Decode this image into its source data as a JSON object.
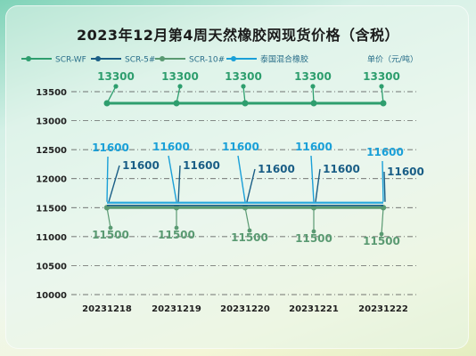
{
  "title": "2023年12月第4周天然橡胶网现货价格（含税）",
  "legend": {
    "items": [
      {
        "name": "SCR-WF",
        "color": "#2e9e6e"
      },
      {
        "name": "SCR-5#",
        "color": "#1a5e86"
      },
      {
        "name": "SCR-10#",
        "color": "#5a9a72"
      },
      {
        "name": "泰国混合橡胶",
        "color": "#1aa0d8"
      }
    ],
    "unit": "单价（元/吨）"
  },
  "chart_data": {
    "type": "line",
    "categories": [
      "20231218",
      "20231219",
      "20231220",
      "20231221",
      "20231222"
    ],
    "series": [
      {
        "name": "SCR-WF",
        "values": [
          13300,
          13300,
          13300,
          13300,
          13300
        ],
        "color": "#2e9e6e"
      },
      {
        "name": "SCR-5#",
        "values": [
          11600,
          11600,
          11600,
          11600,
          11600
        ],
        "color": "#1a5e86"
      },
      {
        "name": "SCR-10#",
        "values": [
          11500,
          11500,
          11500,
          11500,
          11500
        ],
        "color": "#5a9a72"
      },
      {
        "name": "泰国混合橡胶",
        "values": [
          11600,
          11600,
          11600,
          11600,
          11600
        ],
        "color": "#1aa0d8"
      }
    ],
    "ylim": [
      10000,
      13500
    ],
    "yticks": [
      10000,
      10500,
      11000,
      11500,
      12000,
      12500,
      13000,
      13500
    ],
    "grid": true,
    "legend_position": "top"
  }
}
